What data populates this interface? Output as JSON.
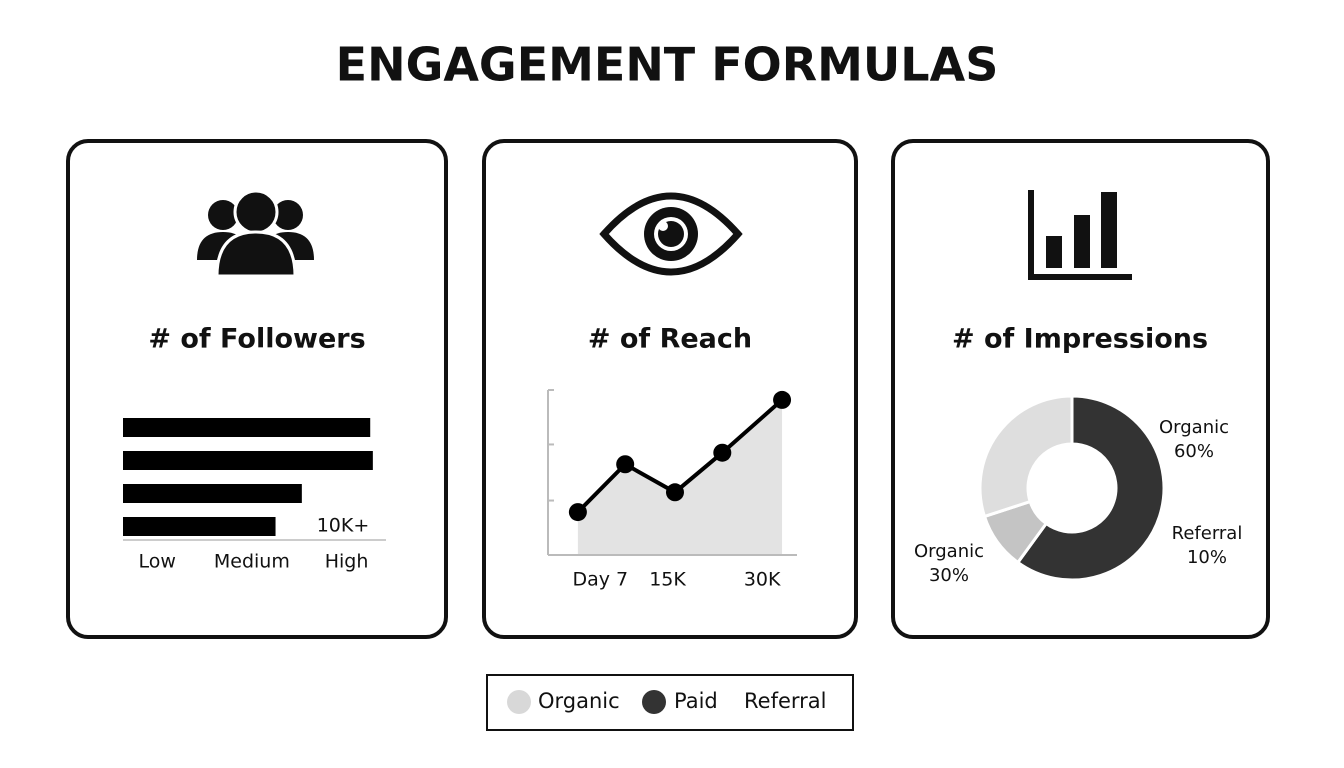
{
  "title": "ENGAGEMENT FORMULAS",
  "chart_data": [
    {
      "type": "bar",
      "orientation": "horizontal",
      "title": "# of Followers",
      "values": [
        94,
        95,
        68,
        58
      ],
      "color": "#000000",
      "xlim": [
        0,
        100
      ],
      "xticks": [
        {
          "value": 13,
          "label": "Low"
        },
        {
          "value": 49,
          "label": "Medium"
        },
        {
          "value": 85,
          "label": "High"
        }
      ],
      "annotation": "10K+"
    },
    {
      "type": "line",
      "title": "# of Reach",
      "x": [
        12,
        31,
        51,
        70,
        94
      ],
      "values": [
        26,
        55,
        38,
        62,
        94
      ],
      "color": "#000000",
      "area_color": "#e3e3e3",
      "xlim": [
        0,
        100
      ],
      "ylim": [
        0,
        100
      ],
      "xticks": [
        {
          "value": 21,
          "label": "Day 7"
        },
        {
          "value": 48,
          "label": "15K"
        },
        {
          "value": 86,
          "label": "30K"
        }
      ],
      "yticks": [
        33,
        67,
        100
      ]
    },
    {
      "type": "pie",
      "title": "# of Impressions",
      "categories": [
        "Organic",
        "Referral",
        "Organic"
      ],
      "values": [
        60,
        10,
        30
      ],
      "value_labels": [
        "60%",
        "10%",
        "30%"
      ],
      "colors": [
        "#333333",
        "#c4c4c4",
        "#dedede"
      ]
    }
  ],
  "legend": [
    {
      "name": "Organic",
      "color": "#d8d8d8"
    },
    {
      "name": "Paid",
      "color": "#333333"
    },
    {
      "name": "Referral"
    }
  ]
}
